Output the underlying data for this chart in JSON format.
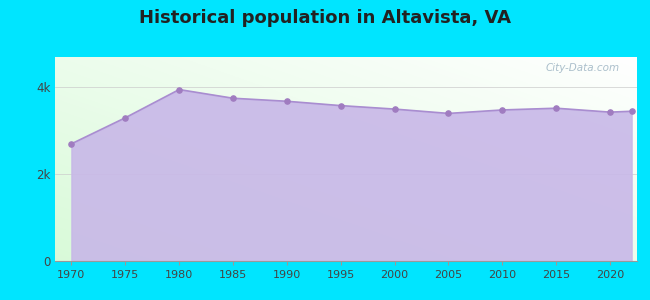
{
  "title": "Historical population in Altavista, VA",
  "years": [
    1970,
    1975,
    1980,
    1985,
    1990,
    1995,
    2000,
    2005,
    2010,
    2015,
    2020,
    2022
  ],
  "population": [
    2700,
    3300,
    3950,
    3750,
    3680,
    3580,
    3500,
    3400,
    3480,
    3520,
    3430,
    3450
  ],
  "yticks": [
    0,
    2000,
    4000
  ],
  "ytick_labels": [
    "0",
    "2k",
    "4k"
  ],
  "ylim": [
    0,
    4700
  ],
  "xlim": [
    1968.5,
    2022.5
  ],
  "fill_color": "#c8b8e8",
  "line_color": "#a98dd0",
  "marker_color": "#a07cc0",
  "bg_outer": "#00e5ff",
  "grid_color": "#cccccc",
  "title_fontsize": 13,
  "title_color": "#222222",
  "watermark": "City-Data.com",
  "xticks": [
    1970,
    1975,
    1980,
    1985,
    1990,
    1995,
    2000,
    2005,
    2010,
    2015,
    2020
  ]
}
